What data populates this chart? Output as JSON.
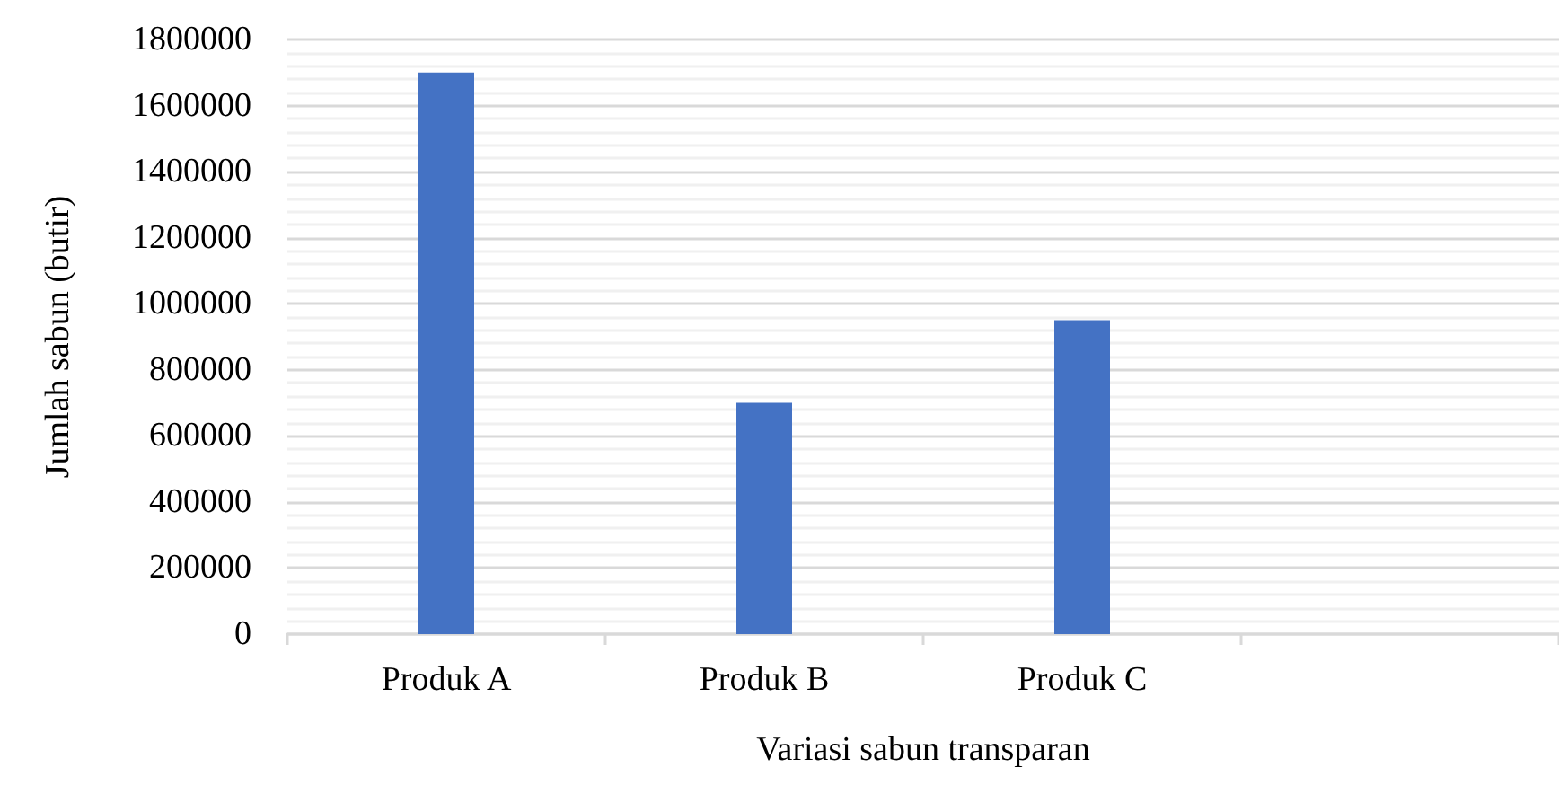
{
  "chart_data": {
    "type": "bar",
    "xlabel": "Variasi sabun transparan",
    "ylabel": "Jumlah sabun (butir)",
    "categories": [
      "Produk A",
      "Produk B",
      "Produk C",
      null
    ],
    "values": [
      1700000,
      700000,
      950000,
      null
    ],
    "color": "#4472c4",
    "ylim": [
      0,
      1800000
    ],
    "yticks": [
      0,
      200000,
      400000,
      600000,
      800000,
      1000000,
      1200000,
      1400000,
      1600000,
      1800000
    ],
    "grid": "y"
  }
}
